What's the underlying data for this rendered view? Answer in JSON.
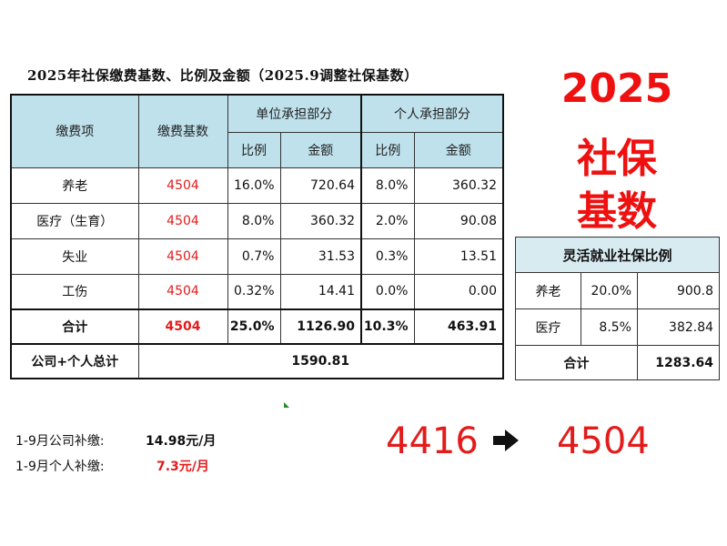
{
  "main_title": "2025年社保缴费基数、比例及金额（2025.9调整社保基数）",
  "main_table": {
    "headers": {
      "item": "缴费项",
      "base": "缴费基数",
      "company_part": "单位承担部分",
      "personal_part": "个人承担部分",
      "ratio": "比例",
      "amount": "金额"
    },
    "rows": [
      {
        "item": "养老",
        "base": "4504",
        "company_ratio": "16.0%",
        "company_amount": "720.64",
        "personal_ratio": "8.0%",
        "personal_amount": "360.32"
      },
      {
        "item": "医疗（生育）",
        "base": "4504",
        "company_ratio": "8.0%",
        "company_amount": "360.32",
        "personal_ratio": "2.0%",
        "personal_amount": "90.08"
      },
      {
        "item": "失业",
        "base": "4504",
        "company_ratio": "0.7%",
        "company_amount": "31.53",
        "personal_ratio": "0.3%",
        "personal_amount": "13.51"
      },
      {
        "item": "工伤",
        "base": "4504",
        "company_ratio": "0.32%",
        "company_amount": "14.41",
        "personal_ratio": "0.0%",
        "personal_amount": "0.00"
      }
    ],
    "total": {
      "item": "合计",
      "base": "4504",
      "company_ratio": "25.0%",
      "company_amount": "1126.90",
      "personal_ratio": "10.3%",
      "personal_amount": "463.91"
    },
    "grand_total": {
      "label": "公司+个人总计",
      "value": "1590.81"
    }
  },
  "big_title": {
    "year": "2025",
    "line2": "社保",
    "line3": "基数"
  },
  "flex_table": {
    "title": "灵活就业社保比例",
    "rows": [
      {
        "item": "养老",
        "ratio": "20.0%",
        "amount": "900.8"
      },
      {
        "item": "医疗",
        "ratio": "8.5%",
        "amount": "382.84"
      }
    ],
    "total": {
      "label": "合计",
      "amount": "1283.64"
    }
  },
  "notes": {
    "company_label": "1-9月公司补缴:",
    "company_value": "14.98元/月",
    "personal_label": "1-9月个人补缴:",
    "personal_value": "7.3元/月"
  },
  "base_change": {
    "old": "4416",
    "new": "4504",
    "arrow_icon": "arrow-right-icon"
  },
  "colors": {
    "accent_red": "#e31b1b",
    "header_bg": "#bfe1ec",
    "title_red": "#ef1010"
  }
}
